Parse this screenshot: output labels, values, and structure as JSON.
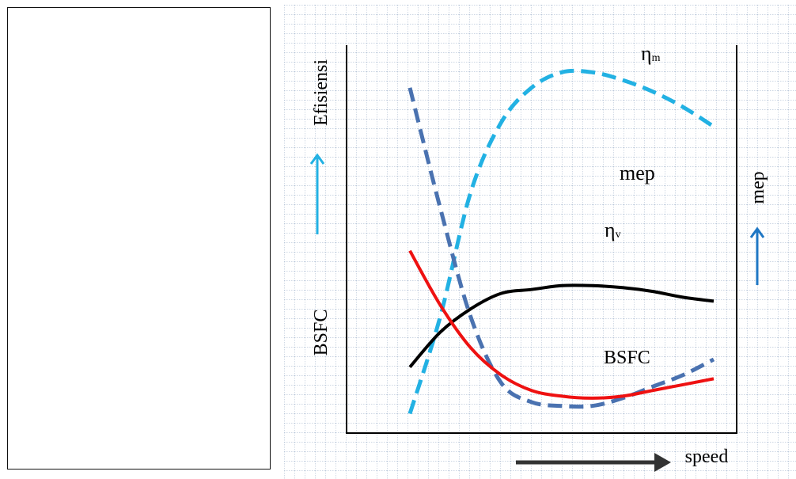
{
  "left_panel": {
    "content": ""
  },
  "chart_data": {
    "type": "line",
    "title": "",
    "xlabel": "speed",
    "ylabel_left_top": "Efisiensi",
    "ylabel_left_bottom": "BSFC",
    "ylabel_right": "mep",
    "grid": true,
    "x": [
      0,
      1,
      2,
      3,
      4,
      5,
      6,
      7,
      8,
      9,
      10
    ],
    "xlim": [
      0,
      10
    ],
    "ylim": [
      0,
      100
    ],
    "series": [
      {
        "name": "ηm",
        "label_main": "η",
        "label_sub": "m",
        "style": "dashed",
        "color": "#22b1e3",
        "values": [
          5,
          30,
          62,
          80,
          89,
          93,
          93,
          91,
          88,
          84,
          79
        ]
      },
      {
        "name": "ηv",
        "label_main": "η",
        "label_sub": "v",
        "style": "dashed",
        "color": "#4a72b0",
        "values": [
          89,
          58,
          30,
          13,
          8,
          7,
          7,
          9,
          12,
          15,
          19
        ]
      },
      {
        "name": "mep",
        "label_main": "mep",
        "style": "solid",
        "color": "#000000",
        "values": [
          17,
          26,
          32,
          36,
          37,
          38,
          38,
          37.5,
          36.5,
          35,
          34
        ]
      },
      {
        "name": "BSFC",
        "label_main": "BSFC",
        "style": "solid",
        "color": "#ee1111",
        "values": [
          47,
          33,
          22,
          15,
          11,
          9.5,
          9,
          9.5,
          11,
          12.5,
          14
        ]
      }
    ],
    "colors": {
      "grid": "#9aaec8",
      "axis": "#000000",
      "left_arrow": "#22b1e3",
      "right_arrow": "#1f77c4",
      "speed_arrow": "#333333"
    }
  }
}
